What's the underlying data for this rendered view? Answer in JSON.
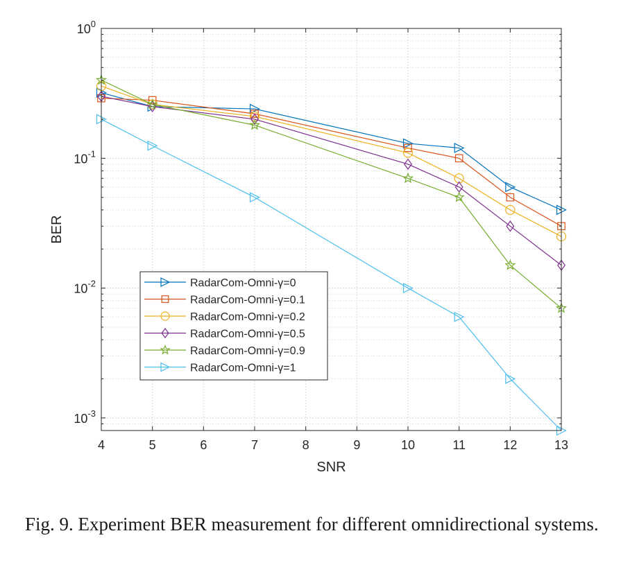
{
  "chart_data": {
    "type": "line",
    "title": "",
    "xlabel": "SNR",
    "ylabel": "BER",
    "yscale": "log",
    "xlim": [
      4,
      13
    ],
    "ylim": [
      0.0008,
      1
    ],
    "x_ticks": [
      "4",
      "5",
      "6",
      "7",
      "8",
      "9",
      "10",
      "11",
      "12",
      "13"
    ],
    "y_ticks": [
      {
        "base": "10",
        "exp": "0"
      },
      {
        "base": "10",
        "exp": "-1"
      },
      {
        "base": "10",
        "exp": "-2"
      },
      {
        "base": "10",
        "exp": "-3"
      }
    ],
    "grid": true,
    "legend_position": "bottom-left",
    "x": [
      4,
      5,
      7,
      10,
      11,
      12,
      13
    ],
    "series": [
      {
        "name": "RadarCom-Omni-γ=0",
        "color": "#0072BD",
        "marker": "triangle-right",
        "values": [
          0.32,
          0.25,
          0.24,
          0.13,
          0.12,
          0.06,
          0.04
        ]
      },
      {
        "name": "RadarCom-Omni-γ=0.1",
        "color": "#D95319",
        "marker": "square",
        "values": [
          0.29,
          0.28,
          0.22,
          0.12,
          0.1,
          0.05,
          0.03
        ]
      },
      {
        "name": "RadarCom-Omni-γ=0.2",
        "color": "#EDB120",
        "marker": "circle",
        "values": [
          0.36,
          0.26,
          0.21,
          0.11,
          0.07,
          0.04,
          0.025
        ]
      },
      {
        "name": "RadarCom-Omni-γ=0.5",
        "color": "#7E2F8E",
        "marker": "diamond",
        "values": [
          0.3,
          0.25,
          0.2,
          0.09,
          0.06,
          0.03,
          0.015
        ]
      },
      {
        "name": "RadarCom-Omni-γ=0.9",
        "color": "#77AC30",
        "marker": "star",
        "values": [
          0.4,
          0.26,
          0.18,
          0.07,
          0.05,
          0.015,
          0.007
        ]
      },
      {
        "name": "RadarCom-Omni-γ=1",
        "color": "#4DBEEE",
        "marker": "triangle-right",
        "values": [
          0.2,
          0.125,
          0.05,
          0.01,
          0.006,
          0.002,
          0.0008
        ]
      }
    ]
  },
  "caption": "Fig. 9. Experiment BER measurement for different omnidirectional systems."
}
